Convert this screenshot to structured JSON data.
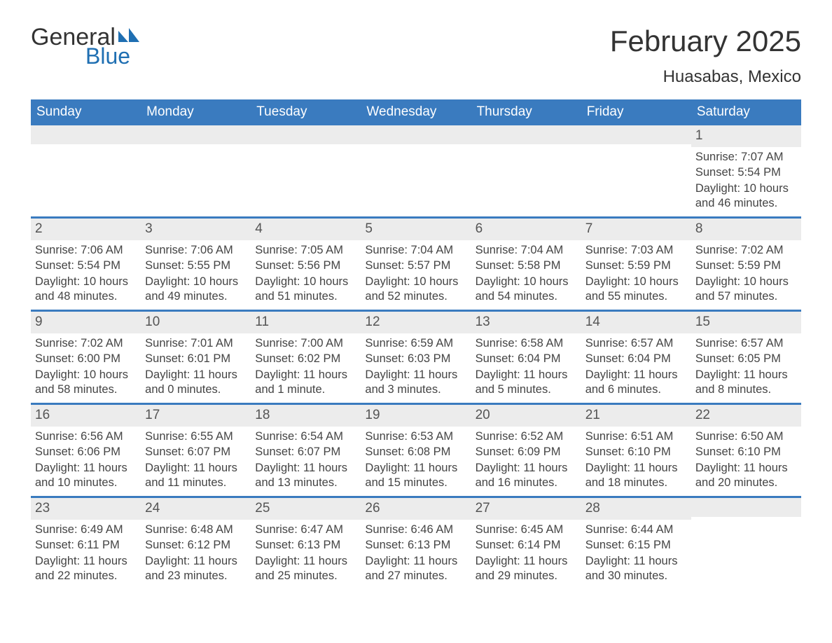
{
  "logo": {
    "general": "General",
    "blue": "Blue"
  },
  "title": "February 2025",
  "location": "Huasabas, Mexico",
  "colors": {
    "header_bg": "#3a7bbf",
    "header_text": "#ffffff",
    "row_accent": "#3a7bbf",
    "daynum_bg": "#ececec",
    "body_text": "#444444",
    "logo_blue": "#1f6fb2"
  },
  "day_names": [
    "Sunday",
    "Monday",
    "Tuesday",
    "Wednesday",
    "Thursday",
    "Friday",
    "Saturday"
  ],
  "weeks": [
    [
      null,
      null,
      null,
      null,
      null,
      null,
      {
        "n": "1",
        "sr": "Sunrise: 7:07 AM",
        "ss": "Sunset: 5:54 PM",
        "dl": "Daylight: 10 hours and 46 minutes."
      }
    ],
    [
      {
        "n": "2",
        "sr": "Sunrise: 7:06 AM",
        "ss": "Sunset: 5:54 PM",
        "dl": "Daylight: 10 hours and 48 minutes."
      },
      {
        "n": "3",
        "sr": "Sunrise: 7:06 AM",
        "ss": "Sunset: 5:55 PM",
        "dl": "Daylight: 10 hours and 49 minutes."
      },
      {
        "n": "4",
        "sr": "Sunrise: 7:05 AM",
        "ss": "Sunset: 5:56 PM",
        "dl": "Daylight: 10 hours and 51 minutes."
      },
      {
        "n": "5",
        "sr": "Sunrise: 7:04 AM",
        "ss": "Sunset: 5:57 PM",
        "dl": "Daylight: 10 hours and 52 minutes."
      },
      {
        "n": "6",
        "sr": "Sunrise: 7:04 AM",
        "ss": "Sunset: 5:58 PM",
        "dl": "Daylight: 10 hours and 54 minutes."
      },
      {
        "n": "7",
        "sr": "Sunrise: 7:03 AM",
        "ss": "Sunset: 5:59 PM",
        "dl": "Daylight: 10 hours and 55 minutes."
      },
      {
        "n": "8",
        "sr": "Sunrise: 7:02 AM",
        "ss": "Sunset: 5:59 PM",
        "dl": "Daylight: 10 hours and 57 minutes."
      }
    ],
    [
      {
        "n": "9",
        "sr": "Sunrise: 7:02 AM",
        "ss": "Sunset: 6:00 PM",
        "dl": "Daylight: 10 hours and 58 minutes."
      },
      {
        "n": "10",
        "sr": "Sunrise: 7:01 AM",
        "ss": "Sunset: 6:01 PM",
        "dl": "Daylight: 11 hours and 0 minutes."
      },
      {
        "n": "11",
        "sr": "Sunrise: 7:00 AM",
        "ss": "Sunset: 6:02 PM",
        "dl": "Daylight: 11 hours and 1 minute."
      },
      {
        "n": "12",
        "sr": "Sunrise: 6:59 AM",
        "ss": "Sunset: 6:03 PM",
        "dl": "Daylight: 11 hours and 3 minutes."
      },
      {
        "n": "13",
        "sr": "Sunrise: 6:58 AM",
        "ss": "Sunset: 6:04 PM",
        "dl": "Daylight: 11 hours and 5 minutes."
      },
      {
        "n": "14",
        "sr": "Sunrise: 6:57 AM",
        "ss": "Sunset: 6:04 PM",
        "dl": "Daylight: 11 hours and 6 minutes."
      },
      {
        "n": "15",
        "sr": "Sunrise: 6:57 AM",
        "ss": "Sunset: 6:05 PM",
        "dl": "Daylight: 11 hours and 8 minutes."
      }
    ],
    [
      {
        "n": "16",
        "sr": "Sunrise: 6:56 AM",
        "ss": "Sunset: 6:06 PM",
        "dl": "Daylight: 11 hours and 10 minutes."
      },
      {
        "n": "17",
        "sr": "Sunrise: 6:55 AM",
        "ss": "Sunset: 6:07 PM",
        "dl": "Daylight: 11 hours and 11 minutes."
      },
      {
        "n": "18",
        "sr": "Sunrise: 6:54 AM",
        "ss": "Sunset: 6:07 PM",
        "dl": "Daylight: 11 hours and 13 minutes."
      },
      {
        "n": "19",
        "sr": "Sunrise: 6:53 AM",
        "ss": "Sunset: 6:08 PM",
        "dl": "Daylight: 11 hours and 15 minutes."
      },
      {
        "n": "20",
        "sr": "Sunrise: 6:52 AM",
        "ss": "Sunset: 6:09 PM",
        "dl": "Daylight: 11 hours and 16 minutes."
      },
      {
        "n": "21",
        "sr": "Sunrise: 6:51 AM",
        "ss": "Sunset: 6:10 PM",
        "dl": "Daylight: 11 hours and 18 minutes."
      },
      {
        "n": "22",
        "sr": "Sunrise: 6:50 AM",
        "ss": "Sunset: 6:10 PM",
        "dl": "Daylight: 11 hours and 20 minutes."
      }
    ],
    [
      {
        "n": "23",
        "sr": "Sunrise: 6:49 AM",
        "ss": "Sunset: 6:11 PM",
        "dl": "Daylight: 11 hours and 22 minutes."
      },
      {
        "n": "24",
        "sr": "Sunrise: 6:48 AM",
        "ss": "Sunset: 6:12 PM",
        "dl": "Daylight: 11 hours and 23 minutes."
      },
      {
        "n": "25",
        "sr": "Sunrise: 6:47 AM",
        "ss": "Sunset: 6:13 PM",
        "dl": "Daylight: 11 hours and 25 minutes."
      },
      {
        "n": "26",
        "sr": "Sunrise: 6:46 AM",
        "ss": "Sunset: 6:13 PM",
        "dl": "Daylight: 11 hours and 27 minutes."
      },
      {
        "n": "27",
        "sr": "Sunrise: 6:45 AM",
        "ss": "Sunset: 6:14 PM",
        "dl": "Daylight: 11 hours and 29 minutes."
      },
      {
        "n": "28",
        "sr": "Sunrise: 6:44 AM",
        "ss": "Sunset: 6:15 PM",
        "dl": "Daylight: 11 hours and 30 minutes."
      },
      null
    ]
  ]
}
